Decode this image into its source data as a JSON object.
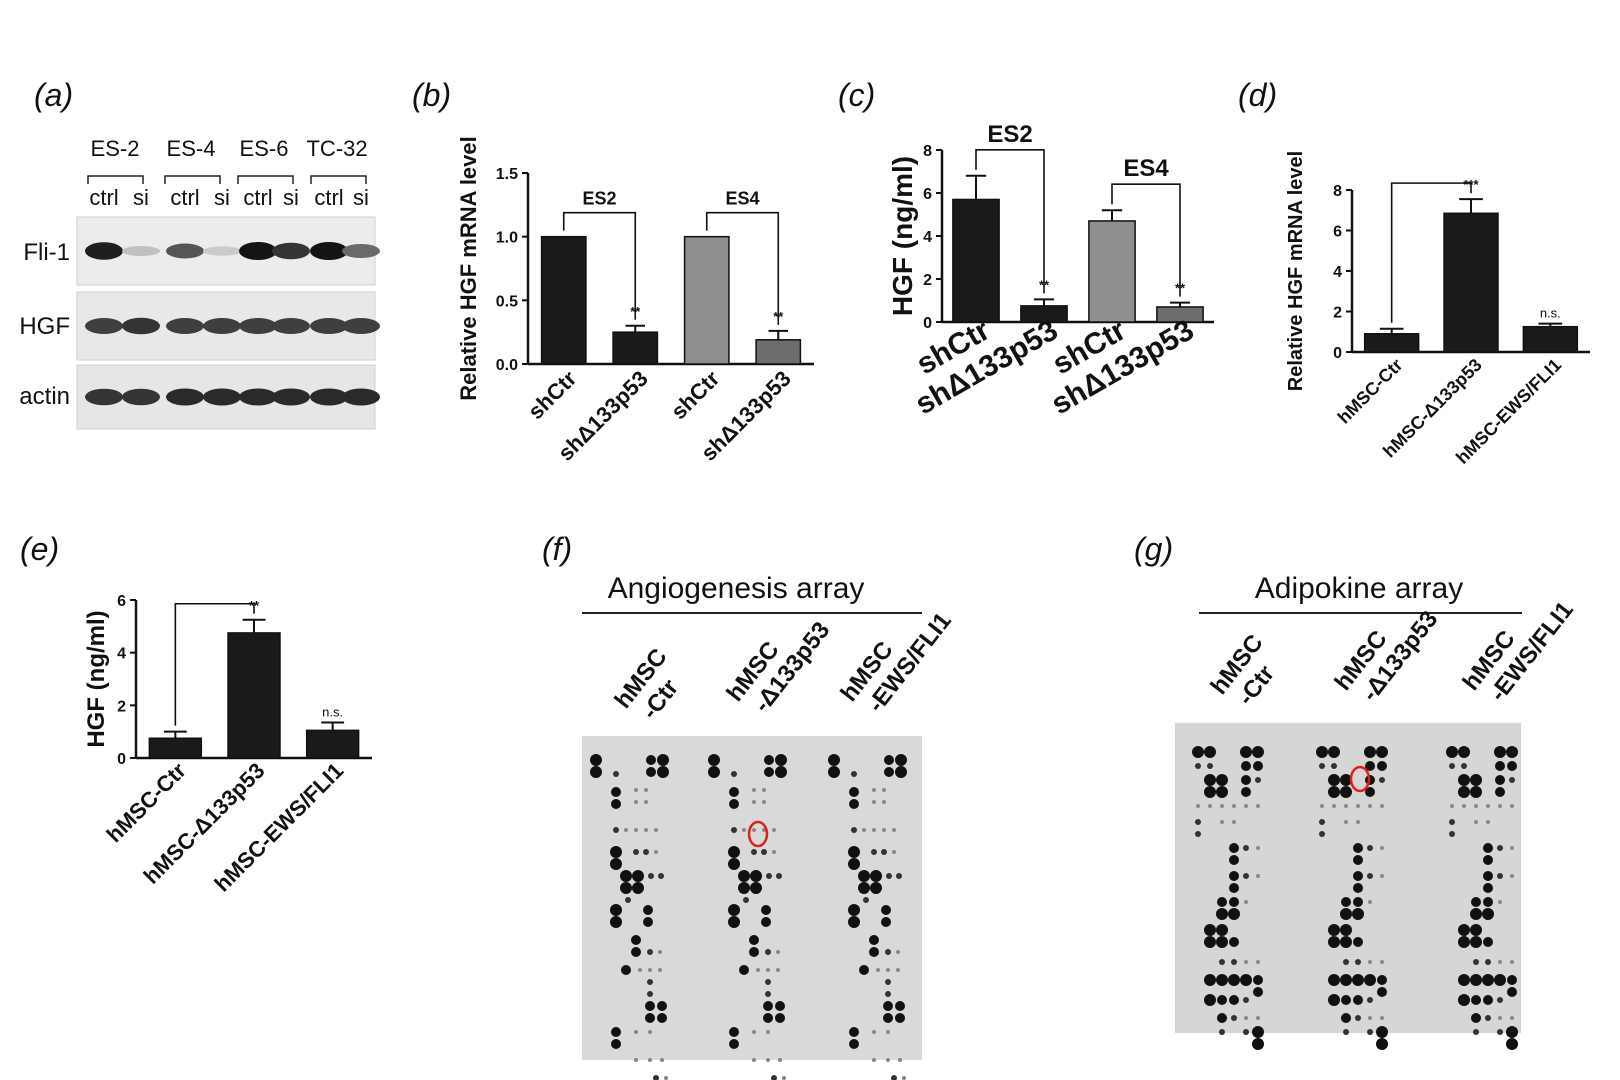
{
  "figure": {
    "panel_a": {
      "letter": "(a)",
      "cell_lines": [
        "ES-2",
        "ES-4",
        "ES-6",
        "TC-32"
      ],
      "lane_labels": [
        "ctrl",
        "si",
        "ctrl",
        "si",
        "ctrl",
        "si",
        "ctrl",
        "si"
      ],
      "blots": [
        {
          "name": "Fli-1",
          "intensity": [
            0.95,
            0.2,
            0.7,
            0.15,
            1.0,
            0.85,
            1.0,
            0.6
          ]
        },
        {
          "name": "HGF",
          "intensity": [
            0.8,
            0.85,
            0.8,
            0.8,
            0.8,
            0.8,
            0.8,
            0.8
          ]
        },
        {
          "name": "actin",
          "intensity": [
            0.85,
            0.85,
            0.9,
            0.9,
            0.9,
            0.9,
            0.9,
            0.9
          ]
        }
      ]
    },
    "panel_f": {
      "letter": "(f)",
      "title": "Angiogenesis array",
      "columns": [
        [
          "hMSC",
          "-Ctr"
        ],
        [
          "hMSC",
          "-Δ133p53"
        ],
        [
          "hMSC",
          "-EWS/FLI1"
        ]
      ]
    },
    "panel_g": {
      "letter": "(g)",
      "title": "Adipokine array",
      "columns": [
        [
          "hMSC",
          "-Ctr"
        ],
        [
          "hMSC",
          "-Δ133p53"
        ],
        [
          "hMSC",
          "-EWS/FLI1"
        ]
      ]
    },
    "highlight_color": "#e0201c"
  },
  "chart_data": [
    {
      "panel": "(b)",
      "type": "bar",
      "categories": [
        "shCtr",
        "shΔ133p53",
        "shCtr",
        "shΔ133p53"
      ],
      "values": [
        1.0,
        0.25,
        1.0,
        0.19
      ],
      "errors": [
        0,
        0.05,
        0,
        0.07
      ],
      "colors": [
        "#1a1a1a",
        "#1a1a1a",
        "#8f8f8f",
        "#6d6d6d"
      ],
      "ylabel": "Relative HGF mRNA level",
      "ylim": [
        0,
        1.5
      ],
      "yticks": [
        "0.0",
        "0.5",
        "1.0",
        "1.5"
      ],
      "brackets": [
        {
          "from": 0,
          "to": 1,
          "label": "ES2",
          "sig": "**"
        },
        {
          "from": 2,
          "to": 3,
          "label": "ES4",
          "sig": "**"
        }
      ]
    },
    {
      "panel": "(c)",
      "type": "bar",
      "categories": [
        "shCtr",
        "shΔ133p53",
        "shCtr",
        "shΔ133p53"
      ],
      "values": [
        5.7,
        0.75,
        4.7,
        0.7
      ],
      "errors": [
        1.1,
        0.3,
        0.5,
        0.2
      ],
      "colors": [
        "#1a1a1a",
        "#1a1a1a",
        "#8f8f8f",
        "#6d6d6d"
      ],
      "ylabel": "HGF (ng/ml)",
      "ylim": [
        0,
        8
      ],
      "yticks": [
        "0",
        "2",
        "4",
        "6",
        "8"
      ],
      "brackets": [
        {
          "from": 0,
          "to": 1,
          "label": "ES2",
          "sig": "**"
        },
        {
          "from": 2,
          "to": 3,
          "label": "ES4",
          "sig": "**"
        }
      ]
    },
    {
      "panel": "(d)",
      "type": "bar",
      "categories": [
        "hMSC-Ctr",
        "hMSC-Δ133p53",
        "hMSC-EWS/FLI1"
      ],
      "values": [
        0.9,
        6.85,
        1.25
      ],
      "errors": [
        0.25,
        0.7,
        0.15
      ],
      "colors": [
        "#1a1a1a",
        "#1a1a1a",
        "#1a1a1a"
      ],
      "ylabel": "Relative HGF mRNA level",
      "ylim": [
        0,
        8
      ],
      "yticks": [
        "0",
        "2",
        "4",
        "6",
        "8"
      ],
      "brackets": [
        {
          "from": 0,
          "to": 1,
          "label": "",
          "sig": "***"
        }
      ],
      "annotations": [
        {
          "bar": 2,
          "text": "n.s."
        }
      ]
    },
    {
      "panel": "(e)",
      "type": "bar",
      "categories": [
        "hMSC-Ctr",
        "hMSC-Δ133p53",
        "hMSC-EWS/FLI1"
      ],
      "values": [
        0.75,
        4.75,
        1.05
      ],
      "errors": [
        0.25,
        0.5,
        0.3
      ],
      "colors": [
        "#1a1a1a",
        "#1a1a1a",
        "#1a1a1a"
      ],
      "ylabel": "HGF (ng/ml)",
      "ylim": [
        0,
        6
      ],
      "yticks": [
        "0",
        "2",
        "4",
        "6"
      ],
      "brackets": [
        {
          "from": 0,
          "to": 1,
          "label": "",
          "sig": "**"
        }
      ],
      "annotations": [
        {
          "bar": 2,
          "text": "n.s."
        }
      ]
    }
  ]
}
